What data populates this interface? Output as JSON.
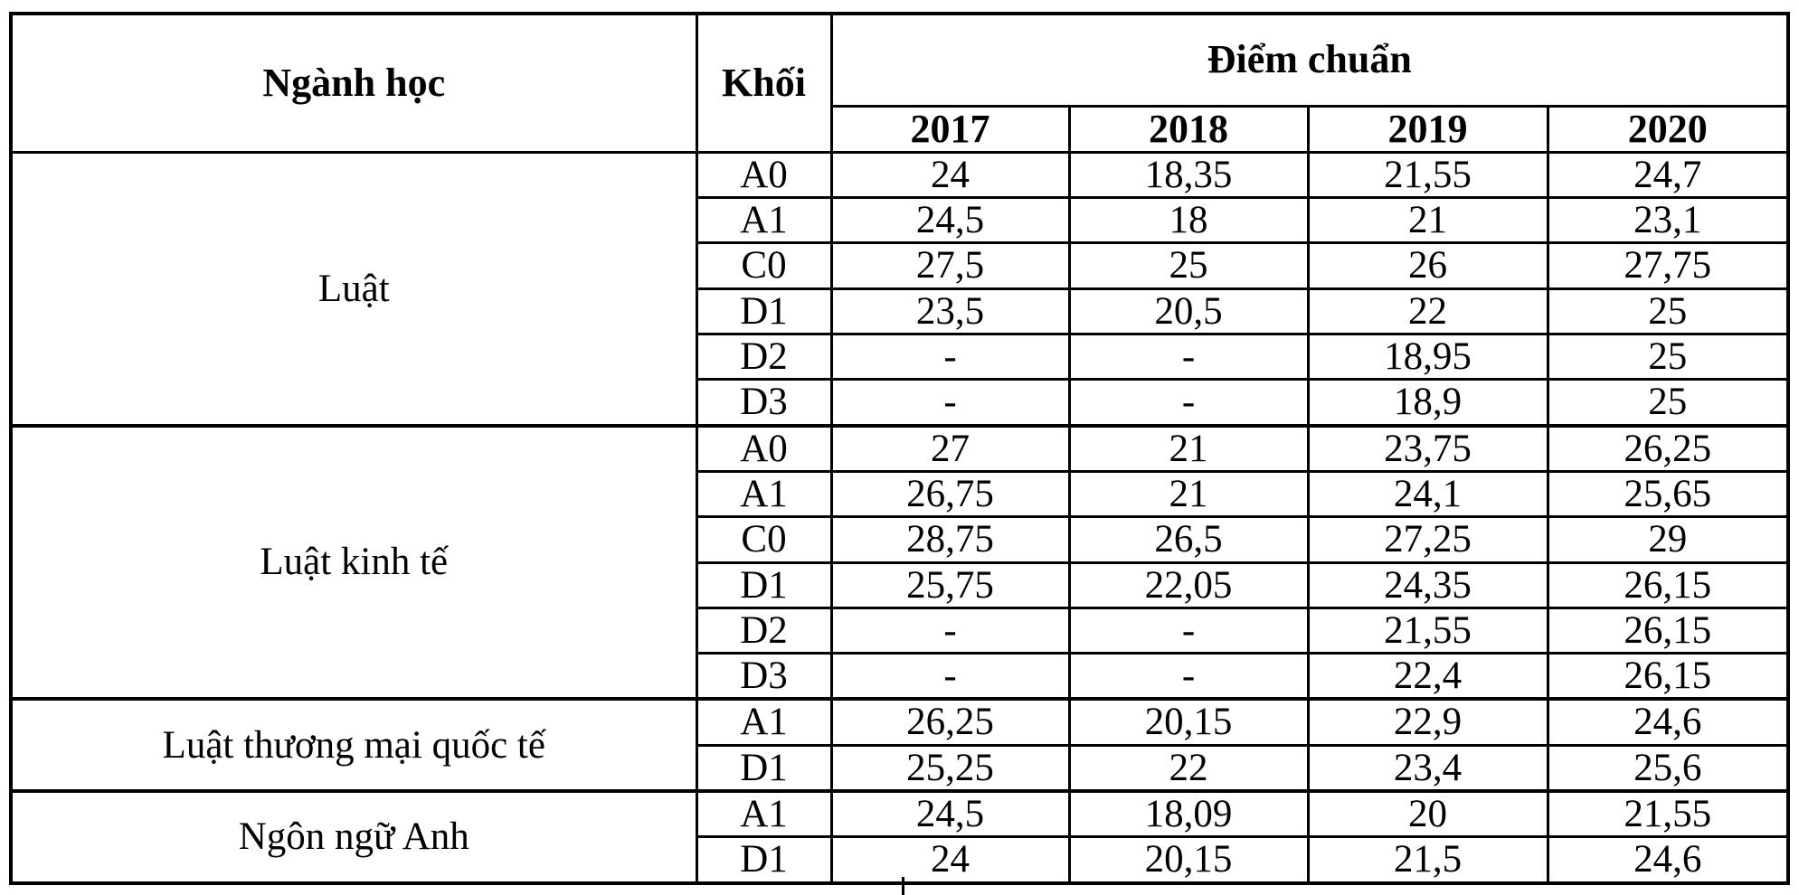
{
  "colors": {
    "border": "#000000",
    "background": "#ffffff",
    "text": "#000000"
  },
  "cursor_mark_glyph": "|",
  "table": {
    "headers": {
      "major": "Ngành học",
      "block": "Khối",
      "score_group": "Điểm chuẩn"
    },
    "years": [
      "2017",
      "2018",
      "2019",
      "2020"
    ],
    "groups": [
      {
        "major": "Luật",
        "rows": [
          {
            "block": "A0",
            "values": [
              "24",
              "18,35",
              "21,55",
              "24,7"
            ]
          },
          {
            "block": "A1",
            "values": [
              "24,5",
              "18",
              "21",
              "23,1"
            ]
          },
          {
            "block": "C0",
            "values": [
              "27,5",
              "25",
              "26",
              "27,75"
            ]
          },
          {
            "block": "D1",
            "values": [
              "23,5",
              "20,5",
              "22",
              "25"
            ]
          },
          {
            "block": "D2",
            "values": [
              "-",
              "-",
              "18,95",
              "25"
            ]
          },
          {
            "block": "D3",
            "values": [
              "-",
              "-",
              "18,9",
              "25"
            ]
          }
        ]
      },
      {
        "major": "Luật kinh tế",
        "rows": [
          {
            "block": "A0",
            "values": [
              "27",
              "21",
              "23,75",
              "26,25"
            ]
          },
          {
            "block": "A1",
            "values": [
              "26,75",
              "21",
              "24,1",
              "25,65"
            ]
          },
          {
            "block": "C0",
            "values": [
              "28,75",
              "26,5",
              "27,25",
              "29"
            ]
          },
          {
            "block": "D1",
            "values": [
              "25,75",
              "22,05",
              "24,35",
              "26,15"
            ]
          },
          {
            "block": "D2",
            "values": [
              "-",
              "-",
              "21,55",
              "26,15"
            ]
          },
          {
            "block": "D3",
            "values": [
              "-",
              "-",
              "22,4",
              "26,15"
            ]
          }
        ]
      },
      {
        "major": "Luật thương mại quốc tế",
        "rows": [
          {
            "block": "A1",
            "values": [
              "26,25",
              "20,15",
              "22,9",
              "24,6"
            ]
          },
          {
            "block": "D1",
            "values": [
              "25,25",
              "22",
              "23,4",
              "25,6"
            ]
          }
        ]
      },
      {
        "major": "Ngôn ngữ Anh",
        "rows": [
          {
            "block": "A1",
            "values": [
              "24,5",
              "18,09",
              "20",
              "21,55"
            ]
          },
          {
            "block": "D1",
            "values": [
              "24",
              "20,15",
              "21,5",
              "24,6"
            ]
          }
        ]
      }
    ]
  }
}
